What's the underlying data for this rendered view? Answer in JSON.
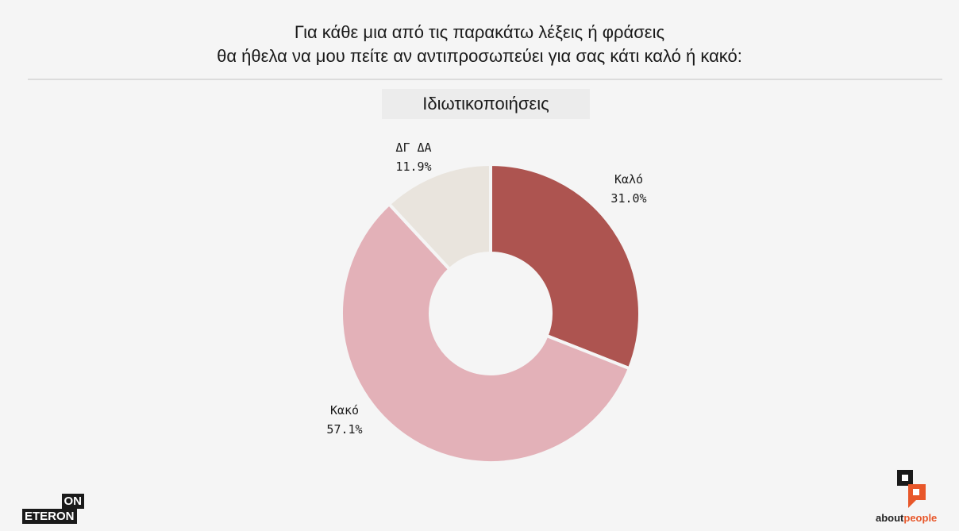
{
  "header": {
    "line1": "Για κάθε μια από τις παρακάτω λέξεις ή φράσεις",
    "line2": "θα ήθελα να μου πείτε αν αντιπροσωπεύει για σας κάτι καλό ή κακό:"
  },
  "chart_data": {
    "type": "pie",
    "variant": "donut",
    "title": "Ιδιωτικοποιήσεις",
    "slices": [
      {
        "label": "Καλό",
        "value": 31.0,
        "display": "31.0%",
        "color": "#ad5450"
      },
      {
        "label": "Κακό",
        "value": 57.1,
        "display": "57.1%",
        "color": "#e3b1b8"
      },
      {
        "label": "ΔΓ ΔΑ",
        "value": 11.9,
        "display": "11.9%",
        "color": "#e9e4dd"
      }
    ]
  },
  "logos": {
    "onet_top": "ON",
    "onet_bottom": "ETERON",
    "about_part1": "about",
    "about_part2": "people",
    "about_icon_colors": [
      "#1a1a1a",
      "#e8572a"
    ]
  }
}
